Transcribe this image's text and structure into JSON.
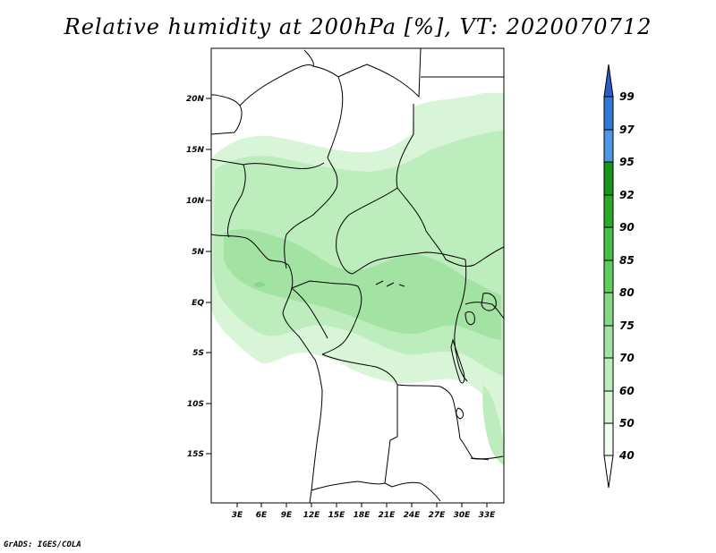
{
  "title": "Relative humidity at 200hPa [%], VT: 2020070712",
  "credit": "GrADS: IGES/COLA",
  "map": {
    "lon_labels": [
      "3E",
      "6E",
      "9E",
      "12E",
      "15E",
      "18E",
      "21E",
      "24E",
      "27E",
      "30E",
      "33E"
    ],
    "lat_labels": [
      "20N",
      "15N",
      "10N",
      "5N",
      "EQ",
      "5S",
      "10S",
      "15S"
    ],
    "lon_range": [
      0,
      35
    ],
    "lat_range": [
      -20,
      25
    ]
  },
  "colorbar": {
    "levels": [
      "40",
      "50",
      "60",
      "70",
      "75",
      "80",
      "85",
      "90",
      "92",
      "95",
      "97",
      "99"
    ],
    "colors": {
      "c40": "#f0fcf0",
      "c50": "#d8f5d8",
      "c60": "#bdecbd",
      "c70": "#a2e2a2",
      "c75": "#86d886",
      "c80": "#5fcc5f",
      "c85": "#46bf46",
      "c90": "#2aaa2a",
      "c92": "#1a961a",
      "c95": "#4e97e5",
      "c97": "#2f78d6",
      "c99": "#2b5cc7"
    }
  }
}
